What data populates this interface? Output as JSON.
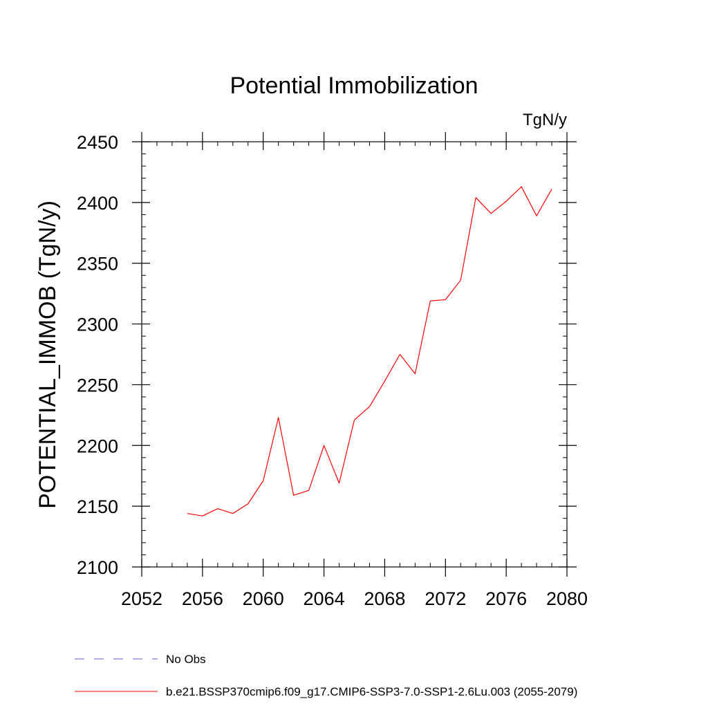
{
  "chart_data": {
    "type": "line",
    "title": "Potential Immobilization",
    "units_label": "TgN/y",
    "xlabel": "",
    "ylabel": "POTENTIAL_IMMOB  (TgN/y)",
    "xlim": [
      2052,
      2080
    ],
    "ylim": [
      2100,
      2450
    ],
    "x_ticks": [
      2052,
      2056,
      2060,
      2064,
      2068,
      2072,
      2076,
      2080
    ],
    "y_ticks": [
      2100,
      2150,
      2200,
      2250,
      2300,
      2350,
      2400,
      2450
    ],
    "x_minor_step": 1,
    "y_minor_step": 10,
    "grid": false,
    "legend_placement": "bottom-left",
    "x": [
      2055,
      2056,
      2057,
      2058,
      2059,
      2060,
      2061,
      2062,
      2063,
      2064,
      2065,
      2066,
      2067,
      2068,
      2069,
      2070,
      2071,
      2072,
      2073,
      2074,
      2075,
      2076,
      2077,
      2078,
      2079
    ],
    "series": [
      {
        "name": "b.e21.BSSP370cmip6.f09_g17.CMIP6-SSP3-7.0-SSP1-2.6Lu.003 (2055-2079)",
        "color": "#ff0000",
        "style": "solid",
        "values": [
          2144,
          2142,
          2148,
          2144,
          2152,
          2171,
          2223,
          2159,
          2163,
          2200,
          2169,
          2221,
          2232,
          2253,
          2275,
          2259,
          2319,
          2320,
          2336,
          2404,
          2391,
          2401,
          2413,
          2389,
          2411
        ]
      }
    ],
    "legend": [
      {
        "label": "No Obs",
        "color": "#6a5acd",
        "style": "dashed"
      },
      {
        "label": "b.e21.BSSP370cmip6.f09_g17.CMIP6-SSP3-7.0-SSP1-2.6Lu.003 (2055-2079)",
        "color": "#ff0000",
        "style": "solid"
      }
    ]
  }
}
